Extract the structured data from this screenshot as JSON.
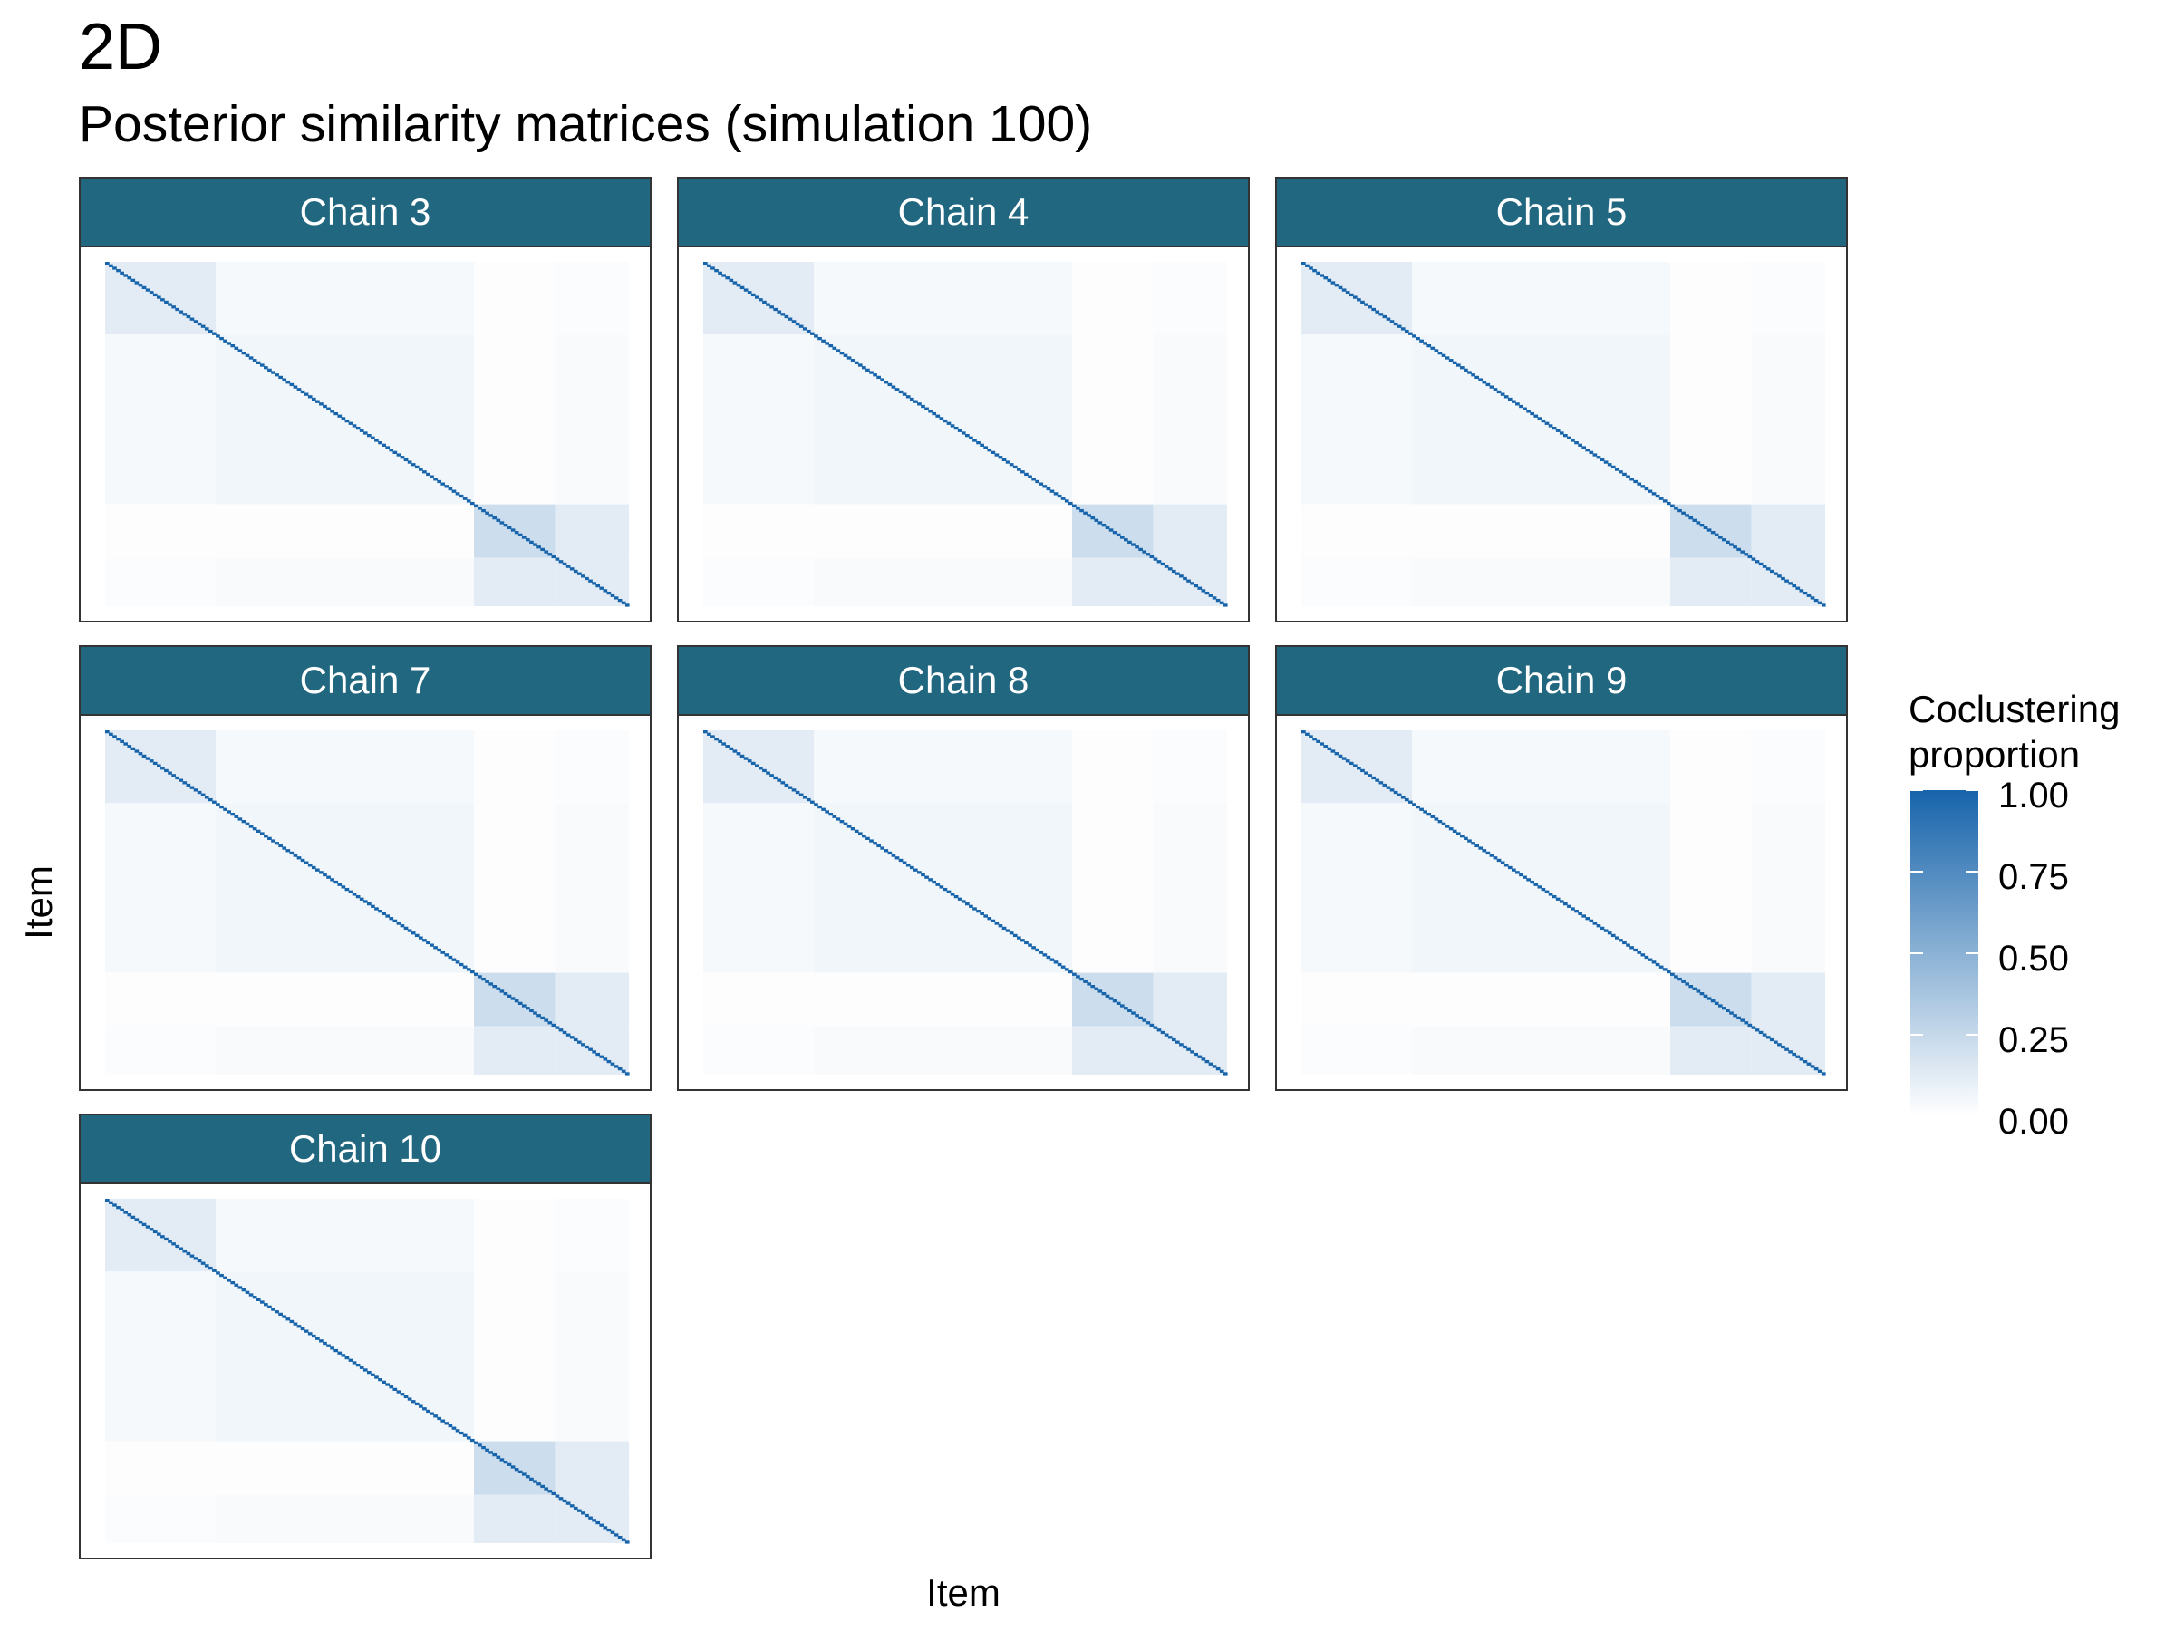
{
  "title": "2D",
  "subtitle": "Posterior similarity matrices (simulation 100)",
  "xlabel": "Item",
  "ylabel": "Item",
  "legend": {
    "title_line1": "Coclustering",
    "title_line2": "proportion",
    "ticks": [
      "1.00",
      "0.75",
      "0.50",
      "0.25",
      "0.00"
    ],
    "colors": {
      "low": "#ffffff",
      "high": "#1764ab"
    }
  },
  "chart_data": {
    "type": "heatmap",
    "title": "2D",
    "subtitle": "Posterior similarity matrices (simulation 100)",
    "xlabel": "Item",
    "ylabel": "Item",
    "value_range": [
      0,
      1
    ],
    "panels": [
      "Chain 3",
      "Chain 4",
      "Chain 5",
      "Chain 7",
      "Chain 8",
      "Chain 9",
      "Chain 10"
    ],
    "cluster_sizes": [
      30,
      70,
      22,
      20
    ],
    "block_proportion": [
      [
        0.12,
        0.04,
        0.01,
        0.02
      ],
      [
        0.04,
        0.06,
        0.01,
        0.03
      ],
      [
        0.01,
        0.01,
        0.22,
        0.12
      ],
      [
        0.02,
        0.03,
        0.12,
        0.12
      ]
    ],
    "diagonal_proportion": 1.0
  }
}
